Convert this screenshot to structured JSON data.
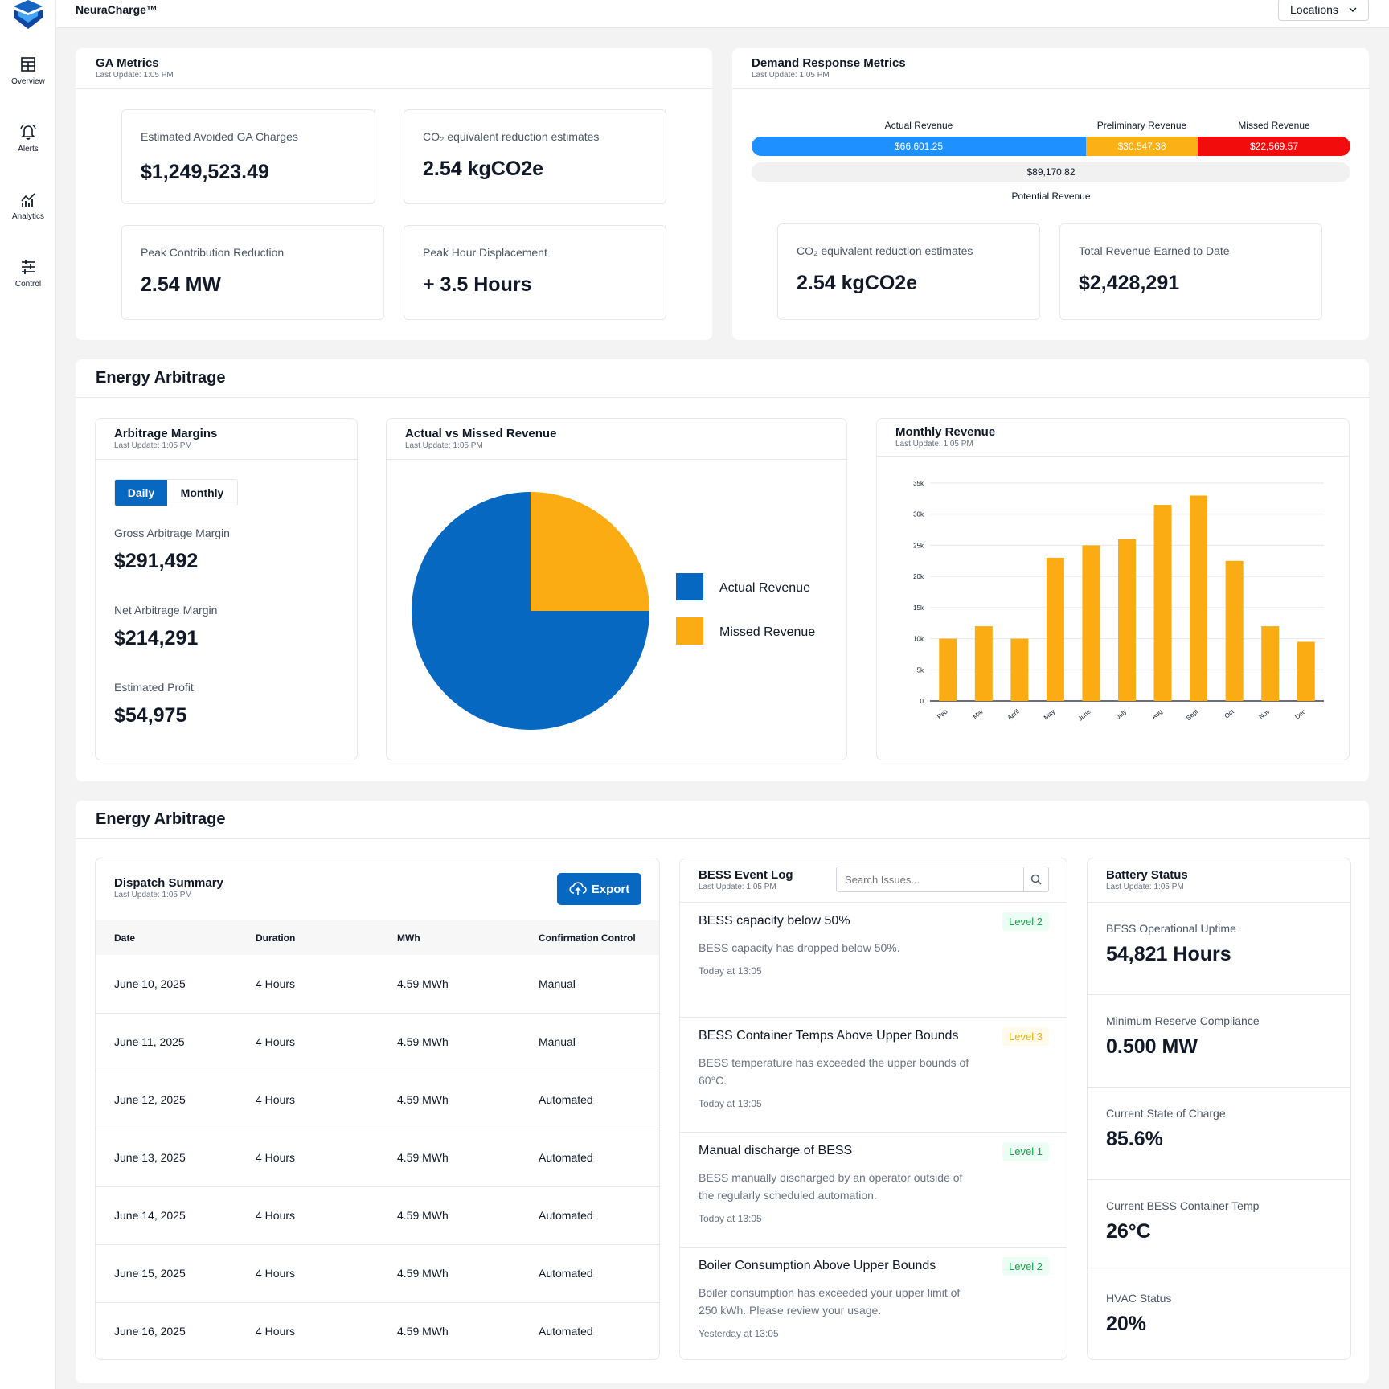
{
  "app": {
    "brand": "NeuraCharge™",
    "locations_label": "Locations"
  },
  "nav": [
    {
      "label": "Overview",
      "icon": "table-icon"
    },
    {
      "label": "Alerts",
      "icon": "bell-icon"
    },
    {
      "label": "Analytics",
      "icon": "analytics-icon"
    },
    {
      "label": "Control",
      "icon": "sliders-icon"
    }
  ],
  "ga": {
    "title": "GA Metrics",
    "updated": "Last Update: 1:05 PM",
    "cards": [
      {
        "label": "Estimated Avoided GA Charges",
        "value": "$1,249,523.49"
      },
      {
        "label": "CO₂ equivalent reduction estimates",
        "value": "2.54 kgCO2e"
      },
      {
        "label": "Peak Contribution Reduction",
        "value": "2.54 MW"
      },
      {
        "label": "Peak Hour Displacement",
        "value": "+ 3.5 Hours"
      }
    ]
  },
  "dr": {
    "title": "Demand Response Metrics",
    "updated": "Last Update: 1:05 PM",
    "segments": [
      {
        "label": "Actual Revenue",
        "value": "$66,601.25",
        "amount": 66601.25,
        "color": "#1e90ff"
      },
      {
        "label": "Preliminary Revenue",
        "value": "$30,547.38",
        "amount": 30547.38,
        "color": "#fbb115"
      },
      {
        "label": "Missed Revenue",
        "value": "$22,569.57",
        "amount": 22569.57,
        "color": "#f20c0c"
      }
    ],
    "potential_value": "$89,170.82",
    "potential_label": "Potential Revenue",
    "cards": [
      {
        "label": "CO₂ equivalent reduction estimates",
        "value": "2.54 kgCO2e"
      },
      {
        "label": "Total Revenue Earned to Date",
        "value": "$2,428,291"
      }
    ]
  },
  "ea1": {
    "title": "Energy Arbitrage",
    "margins": {
      "title": "Arbitrage Margins",
      "updated": "Last Update: 1:05 PM",
      "tabs": [
        "Daily",
        "Monthly"
      ],
      "active_tab": "Daily",
      "items": [
        {
          "label": "Gross Arbitrage Margin",
          "value": "$291,492"
        },
        {
          "label": "Net Arbitrage Margin",
          "value": "$214,291"
        },
        {
          "label": "Estimated Profit",
          "value": "$54,975"
        }
      ]
    },
    "pie": {
      "title": "Actual vs Missed Revenue",
      "updated": "Last Update: 1:05 PM"
    },
    "monthly": {
      "title": "Monthly Revenue",
      "updated": "Last Update: 1:05 PM"
    }
  },
  "chart_data": [
    {
      "type": "pie",
      "labels": [
        "Actual Revenue",
        "Missed Revenue"
      ],
      "values": [
        75,
        25
      ],
      "colors": [
        "#0768c2",
        "#fbac13"
      ],
      "legend": "right"
    },
    {
      "type": "bar",
      "categories": [
        "Feb",
        "Mar",
        "April",
        "May",
        "June",
        "July",
        "Aug",
        "Sept",
        "Oct",
        "Nov",
        "Dec"
      ],
      "values": [
        10000,
        12000,
        10000,
        23000,
        25000,
        26000,
        31500,
        33000,
        22500,
        12000,
        9500
      ],
      "ylim": [
        0,
        35000
      ],
      "yticks": [
        "0",
        "5k",
        "10k",
        "15k",
        "20k",
        "25k",
        "30k",
        "35k"
      ],
      "color": "#fbac13",
      "grid": true
    }
  ],
  "ea2": {
    "title": "Energy Arbitrage",
    "dispatch": {
      "title": "Dispatch Summary",
      "updated": "Last Update: 1:05 PM",
      "export_label": "Export",
      "columns": [
        "Date",
        "Duration",
        "MWh",
        "Confirmation Control"
      ],
      "rows": [
        [
          "June 10, 2025",
          "4 Hours",
          "4.59 MWh",
          "Manual"
        ],
        [
          "June 11, 2025",
          "4 Hours",
          "4.59 MWh",
          "Manual"
        ],
        [
          "June 12, 2025",
          "4 Hours",
          "4.59 MWh",
          "Automated"
        ],
        [
          "June 13, 2025",
          "4 Hours",
          "4.59 MWh",
          "Automated"
        ],
        [
          "June 14, 2025",
          "4 Hours",
          "4.59 MWh",
          "Automated"
        ],
        [
          "June 15, 2025",
          "4 Hours",
          "4.59 MWh",
          "Automated"
        ],
        [
          "June 16, 2025",
          "4 Hours",
          "4.59 MWh",
          "Automated"
        ]
      ]
    },
    "events": {
      "title": "BESS Event Log",
      "updated": "Last Update: 1:05 PM",
      "search_placeholder": "Search Issues...",
      "items": [
        {
          "title": "BESS capacity below 50%",
          "desc": "BESS capacity has dropped below 50%.",
          "time": "Today at 13:05",
          "level": "Level 2"
        },
        {
          "title": "BESS Container Temps Above Upper Bounds",
          "desc": "BESS temperature has exceeded the upper bounds of 60°C.",
          "time": "Today at 13:05",
          "level": "Level 3"
        },
        {
          "title": "Manual discharge of BESS",
          "desc": "BESS manually discharged by an operator outside of the regularly scheduled automation.",
          "time": "Today at 13:05",
          "level": "Level 1"
        },
        {
          "title": "Boiler Consumption Above Upper Bounds",
          "desc": "Boiler consumption has exceeded your upper limit of 250 kWh.  Please review your usage.",
          "time": "Yesterday at 13:05",
          "level": "Level 2"
        }
      ]
    },
    "battery": {
      "title": "Battery Status",
      "updated": "Last Update: 1:05 PM",
      "items": [
        {
          "label": "BESS Operational Uptime",
          "value": "54,821 Hours"
        },
        {
          "label": "Minimum Reserve Compliance",
          "value": "0.500 MW"
        },
        {
          "label": "Current State of Charge",
          "value": "85.6%"
        },
        {
          "label": "Current BESS Container Temp",
          "value": "26°C"
        },
        {
          "label": "HVAC Status",
          "value": "20%"
        }
      ]
    }
  }
}
